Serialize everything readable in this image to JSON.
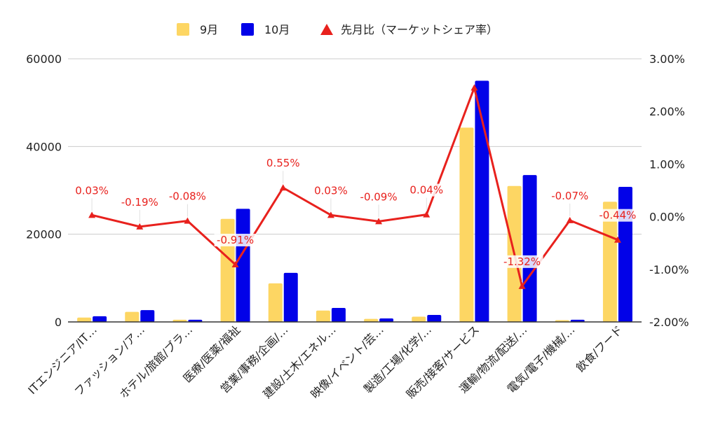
{
  "chart_data": {
    "type": "bar",
    "categories": [
      "ITエンジニア/IT…",
      "ファッション/ア…",
      "ホテル/旅館/ブラ…",
      "医療/医薬/福祉",
      "営業/事務/企画/…",
      "建設/土木/エネル…",
      "映像/イベント/芸…",
      "製造/工場/化学/…",
      "販売/接客/サービス",
      "運輸/物流/配送/…",
      "電気/電子/機械/…",
      "飲食/フード"
    ],
    "series": [
      {
        "name": "9月",
        "type": "bar",
        "axis": "left",
        "color": "#fdd663",
        "values": [
          1000,
          2300,
          500,
          23500,
          8800,
          2600,
          700,
          1200,
          44300,
          31000,
          400,
          27400
        ]
      },
      {
        "name": "10月",
        "type": "bar",
        "axis": "left",
        "color": "#0202e8",
        "values": [
          1300,
          2700,
          500,
          25800,
          11200,
          3200,
          800,
          1600,
          55000,
          33500,
          500,
          30800
        ]
      },
      {
        "name": "先月比（マーケットシェア率）",
        "type": "line",
        "axis": "right",
        "color": "#e8211d",
        "values": [
          0.03,
          -0.19,
          -0.08,
          -0.91,
          0.55,
          0.03,
          -0.09,
          0.04,
          2.45,
          -1.32,
          -0.07,
          -0.44
        ],
        "labels": [
          "0.03%",
          "-0.19%",
          "-0.08%",
          "-0.91%",
          "0.55%",
          "0.03%",
          "-0.09%",
          "0.04%",
          "",
          "-1.32%",
          "-0.07%",
          "-0.44%"
        ]
      }
    ],
    "y_left": {
      "ticks": [
        "0",
        "20000",
        "40000",
        "60000"
      ],
      "ylim": [
        0,
        60000
      ]
    },
    "y_right": {
      "ticks": [
        "-2.00%",
        "-1.00%",
        "0.00%",
        "1.00%",
        "2.00%",
        "3.00%"
      ],
      "ylim": [
        -2,
        3
      ]
    },
    "legend": {
      "position": "top"
    },
    "grid": true
  }
}
